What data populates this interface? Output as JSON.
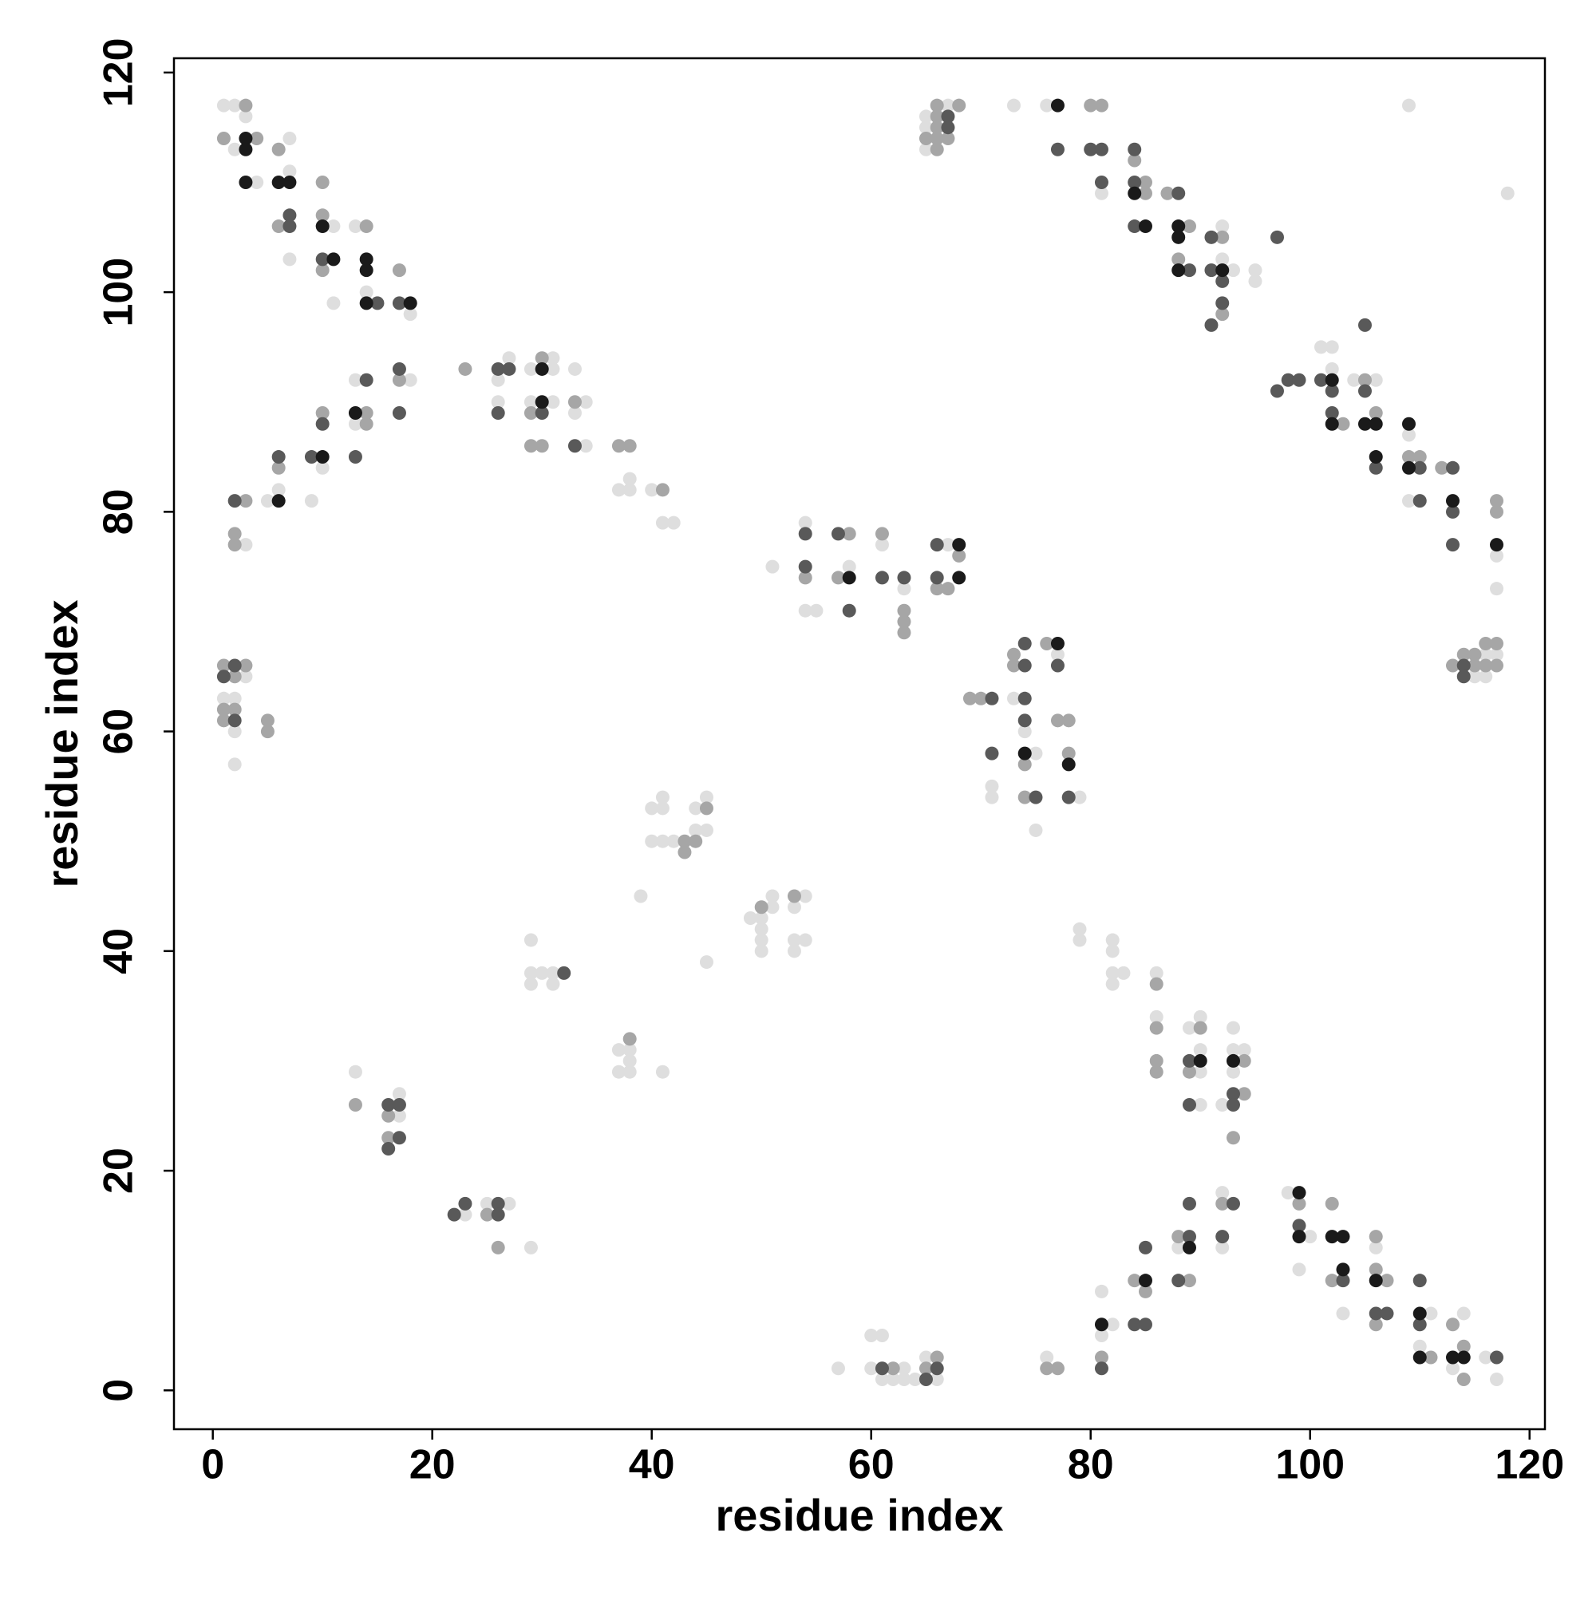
{
  "chart_data": {
    "type": "scatter",
    "xlabel": "residue index",
    "ylabel": "residue index",
    "xlim": [
      -3.54,
      121.4
    ],
    "ylim": [
      -3.54,
      121.3
    ],
    "xticks": [
      0,
      20,
      40,
      60,
      80,
      100,
      120
    ],
    "yticks": [
      0,
      20,
      40,
      60,
      80,
      100,
      120
    ],
    "series": [
      {
        "color": "#dedede",
        "x": [
          1,
          2,
          2,
          3,
          4,
          7,
          7,
          11,
          7,
          13,
          14,
          11,
          18,
          13,
          18,
          13,
          10,
          6,
          5,
          9,
          3,
          3,
          1,
          2,
          2,
          2,
          26,
          27,
          29,
          31,
          31,
          33,
          26,
          29,
          31,
          33,
          34,
          34,
          38,
          37,
          38,
          40,
          41,
          42,
          51,
          54,
          58,
          54,
          55,
          61,
          63,
          67,
          65,
          67,
          65,
          65,
          73,
          76,
          81,
          92,
          92,
          93,
          95,
          95,
          102,
          102,
          101,
          104,
          106,
          109,
          109,
          117,
          117,
          115,
          116,
          116,
          117,
          118,
          109,
          73,
          77,
          74,
          75,
          71,
          71,
          79,
          75,
          40,
          41,
          41,
          44,
          45,
          40,
          41,
          42,
          44,
          45,
          39,
          45,
          49,
          50,
          50,
          50,
          50,
          51,
          51,
          54,
          53,
          53,
          54,
          53,
          29,
          29,
          30,
          31,
          29,
          31,
          37,
          38,
          38,
          37,
          38,
          41,
          13,
          17,
          17,
          23,
          25,
          27,
          29,
          57,
          60,
          61,
          60,
          63,
          61,
          62,
          63,
          64,
          65,
          66,
          76,
          79,
          79,
          82,
          82,
          82,
          83,
          82,
          86,
          86,
          89,
          90,
          90,
          90,
          93,
          93,
          94,
          93,
          92,
          90,
          81,
          82,
          81,
          88,
          92,
          92,
          98,
          100,
          99,
          103,
          106,
          111,
          110,
          113,
          114,
          116,
          117
        ],
        "y": [
          117,
          117,
          113,
          116,
          110,
          114,
          111,
          106,
          103,
          106,
          100,
          99,
          98,
          92,
          92,
          88,
          84,
          82,
          81,
          81,
          77,
          65,
          63,
          63,
          60,
          57,
          92,
          94,
          93,
          94,
          93,
          93,
          90,
          90,
          90,
          89,
          90,
          86,
          83,
          82,
          82,
          82,
          79,
          79,
          75,
          79,
          75,
          71,
          71,
          77,
          73,
          77,
          116,
          117,
          115,
          113,
          117,
          117,
          109,
          106,
          103,
          102,
          102,
          101,
          93,
          95,
          95,
          92,
          92,
          87,
          81,
          76,
          73,
          65,
          67,
          65,
          67,
          109,
          117,
          63,
          67,
          60,
          58,
          55,
          54,
          54,
          51,
          53,
          53,
          54,
          53,
          54,
          50,
          50,
          50,
          51,
          51,
          45,
          39,
          43,
          43,
          42,
          41,
          40,
          45,
          44,
          45,
          44,
          41,
          41,
          40,
          41,
          38,
          38,
          38,
          37,
          37,
          31,
          31,
          30,
          29,
          29,
          29,
          29,
          27,
          25,
          16,
          17,
          17,
          13,
          2,
          5,
          5,
          2,
          2,
          1,
          1,
          1,
          1,
          3,
          1,
          3,
          42,
          41,
          41,
          40,
          38,
          38,
          37,
          38,
          34,
          33,
          34,
          29,
          31,
          33,
          31,
          31,
          29,
          26,
          26,
          9,
          6,
          5,
          13,
          18,
          13,
          18,
          14,
          11,
          7,
          13,
          7,
          4,
          2,
          7,
          3,
          1
        ]
      },
      {
        "color": "#a6a6a6",
        "x": [
          3,
          1,
          4,
          6,
          6,
          10,
          10,
          10,
          14,
          17,
          17,
          14,
          14,
          10,
          6,
          3,
          2,
          2,
          1,
          3,
          2,
          1,
          2,
          1,
          5,
          5,
          23,
          30,
          29,
          33,
          29,
          30,
          37,
          38,
          41,
          54,
          57,
          58,
          61,
          63,
          63,
          63,
          68,
          66,
          67,
          66,
          66,
          68,
          66,
          65,
          66,
          67,
          66,
          80,
          81,
          84,
          85,
          85,
          87,
          89,
          92,
          88,
          92,
          105,
          103,
          106,
          109,
          110,
          112,
          117,
          117,
          113,
          114,
          115,
          115,
          116,
          116,
          117,
          117,
          69,
          70,
          73,
          73,
          76,
          74,
          77,
          78,
          78,
          74,
          45,
          43,
          44,
          43,
          50,
          53,
          38,
          13,
          16,
          16,
          25,
          26,
          62,
          66,
          65,
          76,
          77,
          86,
          86,
          86,
          86,
          90,
          89,
          94,
          94,
          93,
          81,
          84,
          85,
          88,
          89,
          92,
          99,
          102,
          102,
          106,
          106,
          107,
          106,
          111,
          113,
          114,
          114
        ],
        "y": [
          117,
          114,
          114,
          113,
          106,
          110,
          107,
          102,
          106,
          102,
          92,
          89,
          88,
          89,
          84,
          81,
          78,
          77,
          66,
          66,
          65,
          62,
          62,
          61,
          61,
          60,
          93,
          94,
          89,
          90,
          86,
          86,
          86,
          86,
          82,
          74,
          74,
          78,
          78,
          71,
          70,
          69,
          76,
          73,
          73,
          117,
          116,
          117,
          115,
          114,
          114,
          114,
          113,
          117,
          117,
          112,
          110,
          109,
          109,
          106,
          105,
          103,
          98,
          92,
          88,
          89,
          85,
          85,
          84,
          81,
          80,
          66,
          67,
          67,
          66,
          68,
          66,
          68,
          66,
          63,
          63,
          67,
          66,
          68,
          57,
          61,
          61,
          58,
          54,
          53,
          50,
          50,
          49,
          44,
          45,
          32,
          26,
          25,
          23,
          16,
          13,
          2,
          3,
          2,
          2,
          2,
          37,
          33,
          30,
          29,
          33,
          29,
          30,
          27,
          23,
          3,
          10,
          9,
          14,
          10,
          17,
          17,
          17,
          10,
          14,
          11,
          10,
          6,
          3,
          6,
          4,
          1
        ]
      },
      {
        "color": "#595959",
        "x": [
          7,
          7,
          10,
          15,
          17,
          14,
          17,
          17,
          10,
          9,
          13,
          6,
          2,
          2,
          1,
          2,
          26,
          27,
          26,
          30,
          33,
          32,
          54,
          57,
          54,
          58,
          61,
          63,
          66,
          66,
          67,
          67,
          77,
          80,
          81,
          84,
          81,
          84,
          88,
          84,
          91,
          97,
          89,
          91,
          92,
          92,
          91,
          105,
          97,
          98,
          99,
          101,
          102,
          105,
          102,
          106,
          110,
          113,
          110,
          113,
          113,
          114,
          114,
          71,
          74,
          74,
          77,
          74,
          74,
          71,
          75,
          78,
          16,
          17,
          17,
          16,
          22,
          23,
          26,
          26,
          61,
          66,
          65,
          89,
          93,
          93,
          89,
          81,
          85,
          84,
          85,
          89,
          89,
          88,
          93,
          92,
          99,
          103,
          106,
          107,
          110,
          110,
          117
        ],
        "y": [
          107,
          106,
          103,
          99,
          99,
          92,
          93,
          89,
          88,
          85,
          85,
          85,
          81,
          66,
          65,
          61,
          93,
          93,
          89,
          89,
          86,
          38,
          78,
          78,
          75,
          71,
          74,
          74,
          77,
          74,
          116,
          115,
          113,
          113,
          113,
          113,
          110,
          110,
          109,
          106,
          105,
          105,
          102,
          102,
          101,
          99,
          97,
          97,
          91,
          92,
          92,
          92,
          91,
          91,
          89,
          84,
          84,
          84,
          81,
          80,
          77,
          66,
          65,
          63,
          68,
          66,
          66,
          63,
          61,
          58,
          54,
          54,
          26,
          26,
          23,
          22,
          16,
          17,
          17,
          16,
          2,
          2,
          1,
          30,
          27,
          26,
          26,
          2,
          13,
          6,
          6,
          14,
          17,
          10,
          17,
          14,
          15,
          10,
          7,
          7,
          10,
          6,
          3
        ]
      },
      {
        "color": "#1a1a1a",
        "x": [
          3,
          3,
          3,
          6,
          7,
          10,
          11,
          14,
          14,
          14,
          18,
          13,
          10,
          6,
          30,
          30,
          58,
          68,
          68,
          77,
          84,
          85,
          88,
          88,
          88,
          92,
          102,
          102,
          105,
          106,
          106,
          109,
          109,
          113,
          117,
          77,
          74,
          78,
          90,
          93,
          81,
          85,
          89,
          99,
          99,
          102,
          103,
          103,
          106,
          110,
          110,
          113,
          114
        ],
        "y": [
          114,
          113,
          110,
          110,
          110,
          106,
          103,
          103,
          102,
          99,
          99,
          89,
          85,
          81,
          93,
          90,
          74,
          77,
          74,
          117,
          109,
          106,
          106,
          105,
          102,
          102,
          92,
          88,
          88,
          88,
          85,
          88,
          84,
          81,
          77,
          68,
          58,
          57,
          30,
          30,
          6,
          10,
          13,
          18,
          14,
          14,
          14,
          11,
          10,
          7,
          3,
          3,
          3
        ]
      }
    ]
  }
}
